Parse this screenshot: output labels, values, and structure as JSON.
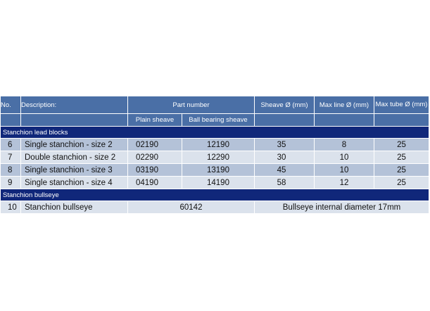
{
  "header": {
    "no": "No.",
    "description": "Description:",
    "part_number": "Part number",
    "sheave": "Sheave Ø (mm)",
    "max_line": "Max line Ø (mm)",
    "max_tube": "Max tube Ø (mm)",
    "plain_sheave": "Plain sheave",
    "ball_bearing_sheave": "Ball bearing sheave"
  },
  "sections": [
    {
      "title": "Stanchion lead blocks",
      "rows": [
        {
          "no": "6",
          "description": "Single stanchion - size 2",
          "plain": "02190",
          "ball": "12190",
          "sheave": "35",
          "max_line": "8",
          "max_tube": "25"
        },
        {
          "no": "7",
          "description": "Double stanchion - size 2",
          "plain": "02290",
          "ball": "12290",
          "sheave": "30",
          "max_line": "10",
          "max_tube": "25"
        },
        {
          "no": "8",
          "description": "Single stanchion - size 3",
          "plain": "03190",
          "ball": "13190",
          "sheave": "45",
          "max_line": "10",
          "max_tube": "25"
        },
        {
          "no": "9",
          "description": "Single stanchion - size 4",
          "plain": "04190",
          "ball": "14190",
          "sheave": "58",
          "max_line": "12",
          "max_tube": "25"
        }
      ]
    },
    {
      "title": "Stanchion bullseye",
      "rows": [
        {
          "no": "10",
          "description": "Stanchion bullseye",
          "part_number": "60142",
          "note": "Bullseye internal diameter 17mm"
        }
      ]
    }
  ],
  "colors": {
    "header_bg": "#4a6fa6",
    "section_bg": "#10277a",
    "row_dark": "#b4c2d8",
    "row_light": "#dbe2ec"
  }
}
